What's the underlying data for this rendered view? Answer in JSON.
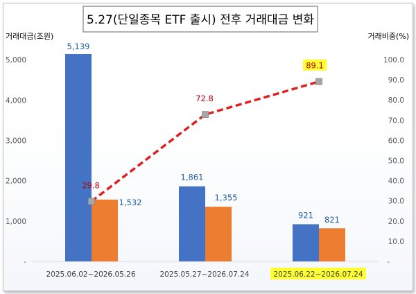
{
  "chart_data": {
    "type": "bar",
    "title": "5.27(단일종목 ETF 출시) 전후 거래대금 변화",
    "ylabel_left": "거래대금(조원)",
    "ylabel_right": "거래비중(%)",
    "categories": [
      "2025.06.02~2026.05.26",
      "2025.05.27~2026.07.24",
      "2025.06.22~2026.07.24"
    ],
    "highlight_category_index": 2,
    "left_axis": {
      "ylim": [
        0,
        5500
      ],
      "ticks": [
        0,
        1000,
        2000,
        3000,
        4000,
        5000
      ],
      "tick_labels": [
        "-",
        "1,000",
        "2,000",
        "3,000",
        "4,000",
        "5,000"
      ]
    },
    "right_axis": {
      "ylim": [
        0,
        100
      ],
      "ticks": [
        0,
        10,
        20,
        30,
        40,
        50,
        60,
        70,
        80,
        90,
        100
      ],
      "tick_labels": [
        "-",
        "10.0",
        "20.0",
        "30.0",
        "40.0",
        "50.0",
        "60.0",
        "70.0",
        "80.0",
        "90.0",
        "100.0"
      ]
    },
    "series": [
      {
        "type": "bar",
        "axis": "left",
        "color": "#4472c4",
        "values": [
          5139,
          1861,
          921
        ],
        "labels": [
          "5,139",
          "1,861",
          "921"
        ]
      },
      {
        "type": "bar",
        "axis": "left",
        "color": "#ed7d31",
        "values": [
          1532,
          1355,
          821
        ],
        "labels": [
          "1,532",
          "1,355",
          "821"
        ]
      },
      {
        "type": "line",
        "axis": "right",
        "color": "#e02020",
        "style": "dashed",
        "values": [
          29.8,
          72.8,
          89.1
        ],
        "labels": [
          "29.8",
          "72.8",
          "89.1"
        ]
      }
    ],
    "colors": {
      "highlight": "#ffff33",
      "line_label": "#c00000",
      "bar_label": "#1f5fa8",
      "axis_text": "#595959"
    },
    "grid": false,
    "legend": "none"
  }
}
